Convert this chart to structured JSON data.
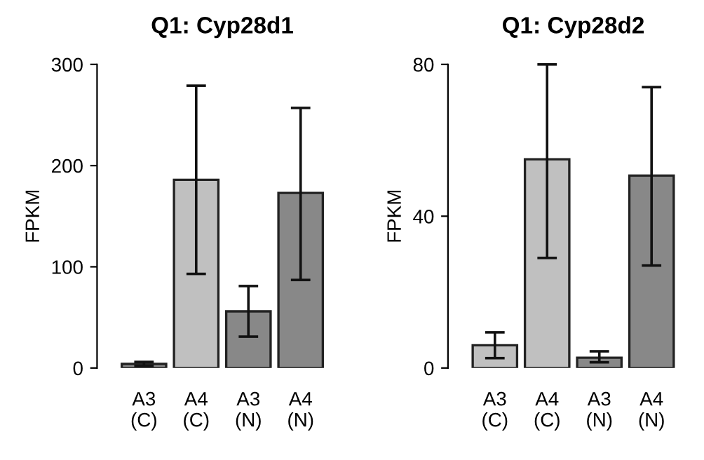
{
  "chart_data": [
    {
      "type": "bar",
      "title": "Q1: Cyp28d1",
      "ylabel": "FPKM",
      "categories": [
        "A3\n(C)",
        "A4\n(C)",
        "A3\n(N)",
        "A4\n(N)"
      ],
      "values": [
        4,
        186,
        56,
        173
      ],
      "colors": [
        "#888888",
        "#c0c0c0",
        "#888888",
        "#888888"
      ],
      "errors": [
        [
          2,
          6
        ],
        [
          93,
          279
        ],
        [
          31,
          81
        ],
        [
          87,
          257
        ]
      ],
      "ylim": [
        0,
        300
      ],
      "yticks": [
        0,
        100,
        200,
        300
      ],
      "grid": false
    },
    {
      "type": "bar",
      "title": "Q1: Cyp28d2",
      "ylabel": "FPKM",
      "categories": [
        "A3\n(C)",
        "A4\n(C)",
        "A3\n(N)",
        "A4\n(N)"
      ],
      "values": [
        6,
        55,
        2.7,
        50.7
      ],
      "colors": [
        "#c0c0c0",
        "#c0c0c0",
        "#888888",
        "#888888"
      ],
      "errors": [
        [
          2.6,
          9.4
        ],
        [
          29,
          80
        ],
        [
          1.5,
          4.4
        ],
        [
          27,
          74
        ]
      ],
      "ylim": [
        0,
        80
      ],
      "yticks": [
        0,
        40,
        80
      ],
      "grid": false
    }
  ]
}
